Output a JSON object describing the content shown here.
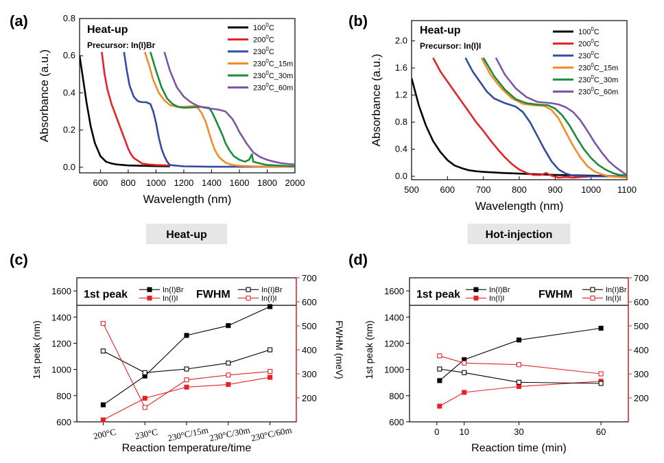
{
  "panel_labels": [
    "(a)",
    "(b)",
    "(c)",
    "(d)"
  ],
  "chart_data": [
    {
      "type": "line",
      "panel": "(a)",
      "title": "Heat-up",
      "subtitle": "Precursor: In(I)Br",
      "xlabel": "Wavelength (nm)",
      "ylabel": "Absorbance (a.u.)",
      "xlim": [
        450,
        2000
      ],
      "ylim": [
        -0.03,
        0.8
      ],
      "xticks": [
        600,
        800,
        1000,
        1200,
        1400,
        1600,
        1800,
        2000
      ],
      "yticks": [
        0.0,
        0.2,
        0.4,
        0.6,
        0.8
      ],
      "xtick_labels": [
        "600",
        "800",
        "1000",
        "1200",
        "1400",
        "1600",
        "1800",
        "2000"
      ],
      "ytick_labels": [
        "0.0",
        "0.2",
        "0.4",
        "0.6",
        "0.8"
      ],
      "legend_position": "top-right",
      "series": [
        {
          "name": "100°C",
          "label_parts": [
            "100",
            "0",
            "C"
          ],
          "color": "#000000",
          "x": [
            450,
            470,
            500,
            530,
            560,
            600,
            640,
            680,
            720,
            800,
            900,
            1000,
            1100
          ],
          "y": [
            0.6,
            0.5,
            0.35,
            0.22,
            0.13,
            0.06,
            0.03,
            0.02,
            0.015,
            0.01,
            0.008,
            0.006,
            0.005
          ]
        },
        {
          "name": "200°C",
          "label_parts": [
            "200",
            "0",
            "C"
          ],
          "color": "#e8202a",
          "x": [
            610,
            630,
            650,
            680,
            710,
            740,
            760,
            780,
            800,
            820,
            840,
            860,
            880,
            900,
            950,
            1000,
            1100
          ],
          "y": [
            0.62,
            0.5,
            0.42,
            0.34,
            0.28,
            0.22,
            0.18,
            0.14,
            0.1,
            0.07,
            0.05,
            0.04,
            0.03,
            0.02,
            0.015,
            0.012,
            0.01
          ]
        },
        {
          "name": "230°C",
          "label_parts": [
            "230",
            "0",
            "C"
          ],
          "color": "#2f4ba3",
          "x": [
            770,
            790,
            810,
            840,
            870,
            900,
            930,
            960,
            980,
            1000,
            1020,
            1040,
            1060,
            1080,
            1100,
            1200,
            1400,
            1600,
            1800,
            2000
          ],
          "y": [
            0.62,
            0.52,
            0.44,
            0.38,
            0.355,
            0.35,
            0.35,
            0.34,
            0.3,
            0.24,
            0.16,
            0.1,
            0.06,
            0.03,
            0.012,
            0.005,
            0.003,
            0.003,
            0.003,
            0.003
          ]
        },
        {
          "name": "230°C_15m",
          "label_parts": [
            "230",
            "0",
            "C_15m"
          ],
          "color": "#f28c28",
          "x": [
            920,
            950,
            980,
            1020,
            1060,
            1100,
            1150,
            1200,
            1250,
            1280,
            1300,
            1330,
            1360,
            1380,
            1400,
            1420,
            1440,
            1460,
            1500,
            1550,
            1600,
            1700,
            1800,
            2000
          ],
          "y": [
            0.62,
            0.55,
            0.47,
            0.4,
            0.36,
            0.335,
            0.325,
            0.325,
            0.328,
            0.33,
            0.32,
            0.29,
            0.24,
            0.19,
            0.14,
            0.1,
            0.07,
            0.05,
            0.025,
            0.012,
            0.008,
            0.005,
            0.004,
            0.003
          ]
        },
        {
          "name": "230°C_30m",
          "label_parts": [
            "230",
            "0",
            "C_30m"
          ],
          "color": "#1b8a3a",
          "x": [
            960,
            1000,
            1040,
            1080,
            1120,
            1160,
            1200,
            1260,
            1320,
            1380,
            1400,
            1420,
            1450,
            1480,
            1500,
            1530,
            1560,
            1600,
            1640,
            1670,
            1690,
            1700,
            1750,
            1800,
            2000
          ],
          "y": [
            0.62,
            0.52,
            0.43,
            0.37,
            0.34,
            0.325,
            0.32,
            0.322,
            0.325,
            0.32,
            0.3,
            0.27,
            0.22,
            0.17,
            0.13,
            0.09,
            0.06,
            0.04,
            0.03,
            0.04,
            0.07,
            0.03,
            0.02,
            0.012,
            0.005
          ]
        },
        {
          "name": "230°C_60m",
          "label_parts": [
            "230",
            "0",
            "C_60m"
          ],
          "color": "#7a55a8",
          "x": [
            1060,
            1100,
            1150,
            1200,
            1250,
            1300,
            1350,
            1400,
            1450,
            1500,
            1550,
            1580,
            1600,
            1650,
            1700,
            1750,
            1800,
            1850,
            1900,
            1950,
            2000
          ],
          "y": [
            0.62,
            0.52,
            0.43,
            0.38,
            0.35,
            0.33,
            0.32,
            0.315,
            0.31,
            0.3,
            0.26,
            0.22,
            0.19,
            0.13,
            0.08,
            0.055,
            0.04,
            0.03,
            0.022,
            0.018,
            0.015
          ]
        }
      ]
    },
    {
      "type": "line",
      "panel": "(b)",
      "title": "Heat-up",
      "subtitle": "Precursor: In(I)I",
      "xlabel": "Wavelength (nm)",
      "ylabel": "Absorbance (a.u.)",
      "xlim": [
        500,
        1100
      ],
      "ylim": [
        -0.05,
        2.3
      ],
      "xticks": [
        500,
        600,
        700,
        800,
        900,
        1000,
        1100
      ],
      "yticks": [
        0.0,
        0.4,
        0.8,
        1.2,
        1.6,
        2.0
      ],
      "xtick_labels": [
        "500",
        "600",
        "700",
        "800",
        "900",
        "1000",
        "1100"
      ],
      "ytick_labels": [
        "0.0",
        "0.4",
        "0.8",
        "1.2",
        "1.6",
        "2.0"
      ],
      "legend_position": "top-right",
      "series": [
        {
          "name": "100°C",
          "label_parts": [
            "100",
            "0",
            "C"
          ],
          "color": "#000000",
          "x": [
            500,
            520,
            540,
            560,
            580,
            600,
            620,
            640,
            660,
            680,
            700,
            750,
            800,
            850,
            900,
            950,
            1000,
            1050,
            1100
          ],
          "y": [
            1.45,
            1.05,
            0.75,
            0.52,
            0.36,
            0.24,
            0.16,
            0.12,
            0.09,
            0.075,
            0.065,
            0.05,
            0.04,
            0.03,
            0.02,
            0.015,
            0.01,
            0.005,
            0.0
          ]
        },
        {
          "name": "200°C",
          "label_parts": [
            "200",
            "0",
            "C"
          ],
          "color": "#e8202a",
          "x": [
            560,
            580,
            600,
            620,
            640,
            660,
            680,
            700,
            720,
            740,
            760,
            780,
            800,
            820,
            840,
            860,
            875,
            890,
            910,
            930,
            950,
            1000,
            1050,
            1100
          ],
          "y": [
            1.75,
            1.55,
            1.4,
            1.25,
            1.1,
            0.95,
            0.8,
            0.67,
            0.53,
            0.4,
            0.28,
            0.18,
            0.1,
            0.05,
            0.02,
            0.02,
            0.05,
            0.01,
            -0.02,
            -0.01,
            -0.02,
            0.0,
            0.0,
            0.0
          ]
        },
        {
          "name": "230°C",
          "label_parts": [
            "230",
            "0",
            "C"
          ],
          "color": "#2f4ba3",
          "x": [
            650,
            670,
            690,
            710,
            730,
            760,
            790,
            810,
            830,
            850,
            870,
            890,
            910,
            930,
            950,
            1000,
            1050,
            1100
          ],
          "y": [
            1.75,
            1.55,
            1.4,
            1.25,
            1.15,
            1.08,
            1.03,
            0.95,
            0.8,
            0.6,
            0.4,
            0.22,
            0.1,
            0.04,
            0.01,
            0.0,
            0.0,
            0.0
          ]
        },
        {
          "name": "230°C_15m",
          "label_parts": [
            "230",
            "0",
            "C_15m"
          ],
          "color": "#f28c28",
          "x": [
            695,
            720,
            750,
            780,
            810,
            840,
            870,
            890,
            910,
            930,
            950,
            970,
            990,
            1010,
            1030,
            1050,
            1080,
            1100
          ],
          "y": [
            1.75,
            1.5,
            1.3,
            1.15,
            1.07,
            1.05,
            1.04,
            0.98,
            0.85,
            0.65,
            0.45,
            0.28,
            0.15,
            0.07,
            0.03,
            0.0,
            -0.01,
            -0.02
          ]
        },
        {
          "name": "230°C_30m",
          "label_parts": [
            "230",
            "0",
            "C_30m"
          ],
          "color": "#1b8a3a",
          "x": [
            700,
            730,
            760,
            790,
            820,
            850,
            880,
            900,
            920,
            940,
            960,
            980,
            1000,
            1020,
            1040,
            1060,
            1080,
            1100
          ],
          "y": [
            1.75,
            1.48,
            1.28,
            1.14,
            1.08,
            1.06,
            1.05,
            1.0,
            0.9,
            0.75,
            0.57,
            0.4,
            0.27,
            0.17,
            0.1,
            0.05,
            0.02,
            0.01
          ]
        },
        {
          "name": "230°C_60m",
          "label_parts": [
            "230",
            "0",
            "C_60m"
          ],
          "color": "#7a55a8",
          "x": [
            735,
            760,
            790,
            820,
            850,
            870,
            890,
            910,
            930,
            950,
            970,
            990,
            1010,
            1030,
            1050,
            1070,
            1090,
            1100
          ],
          "y": [
            1.75,
            1.5,
            1.3,
            1.17,
            1.1,
            1.09,
            1.08,
            1.06,
            1.02,
            0.95,
            0.83,
            0.67,
            0.5,
            0.35,
            0.22,
            0.13,
            0.05,
            0.02
          ]
        }
      ]
    },
    {
      "type": "line",
      "panel": "(c)",
      "title": "Heat-up",
      "xlabel": "Reaction temperature/time",
      "ylabel": "1st peak (nm)",
      "ylabel_right": "FWHM (meV)",
      "x_type": "category",
      "categories": [
        "200°C",
        "230°C",
        "230°C/15m",
        "230°C/30m",
        "230°C/60m"
      ],
      "ylim": [
        600,
        1700
      ],
      "ylim_right": [
        100,
        700
      ],
      "yticks": [
        600,
        800,
        1000,
        1200,
        1400,
        1600
      ],
      "yticks_right": [
        200,
        300,
        400,
        500,
        600,
        700
      ],
      "ytick_labels": [
        "600",
        "800",
        "1000",
        "1200",
        "1400",
        "1600"
      ],
      "ytick_labels_right": [
        "200",
        "300",
        "400",
        "500",
        "600",
        "700"
      ],
      "legend_group_1": "1st peak",
      "legend_group_2": "FWHM",
      "series": [
        {
          "name": "In(I)Br",
          "axis": "left",
          "marker": "filled",
          "color": "#000000",
          "values": [
            730,
            950,
            1260,
            1335,
            1480
          ]
        },
        {
          "name": "In(I)I",
          "axis": "left",
          "marker": "filled",
          "color": "#e8202a",
          "values": [
            615,
            780,
            865,
            885,
            940
          ]
        },
        {
          "name": "In(I)Br",
          "axis": "right",
          "marker": "open",
          "color": "#000000",
          "values": [
            395,
            305,
            320,
            345,
            400
          ]
        },
        {
          "name": "In(I)I",
          "axis": "right",
          "marker": "open",
          "color": "#e8202a",
          "values": [
            510,
            160,
            275,
            295,
            310
          ]
        }
      ]
    },
    {
      "type": "line",
      "panel": "(d)",
      "title": "Hot-injection",
      "xlabel": "Reaction time (min)",
      "ylabel": "1st peak (nm)",
      "ylabel_right": "FWHM (meV)",
      "xlim": [
        -10,
        70
      ],
      "xticks": [
        0,
        10,
        30,
        60
      ],
      "xtick_labels": [
        "0",
        "10",
        "30",
        "60"
      ],
      "ylim": [
        600,
        1700
      ],
      "ylim_right": [
        100,
        700
      ],
      "yticks": [
        600,
        800,
        1000,
        1200,
        1400,
        1600
      ],
      "yticks_right": [
        200,
        300,
        400,
        500,
        600,
        700
      ],
      "ytick_labels": [
        "600",
        "800",
        "1000",
        "1200",
        "1400",
        "1600"
      ],
      "ytick_labels_right": [
        "200",
        "300",
        "400",
        "500",
        "600",
        "700"
      ],
      "legend_group_1": "1st peak",
      "legend_group_2": "FWHM",
      "series": [
        {
          "name": "In(I)Br",
          "axis": "left",
          "marker": "filled",
          "color": "#000000",
          "x": [
            1,
            10,
            30,
            60
          ],
          "values": [
            915,
            1075,
            1225,
            1315
          ]
        },
        {
          "name": "In(I)I",
          "axis": "left",
          "marker": "filled",
          "color": "#e8202a",
          "x": [
            1,
            10,
            30,
            60
          ],
          "values": [
            720,
            825,
            870,
            910
          ]
        },
        {
          "name": "In(I)Br",
          "axis": "right",
          "marker": "open",
          "color": "#000000",
          "x": [
            1,
            10,
            30,
            60
          ],
          "values": [
            320,
            305,
            265,
            260
          ]
        },
        {
          "name": "In(I)I",
          "axis": "right",
          "marker": "open",
          "color": "#e8202a",
          "x": [
            1,
            10,
            30,
            60
          ],
          "values": [
            375,
            345,
            338,
            300
          ]
        }
      ]
    }
  ]
}
